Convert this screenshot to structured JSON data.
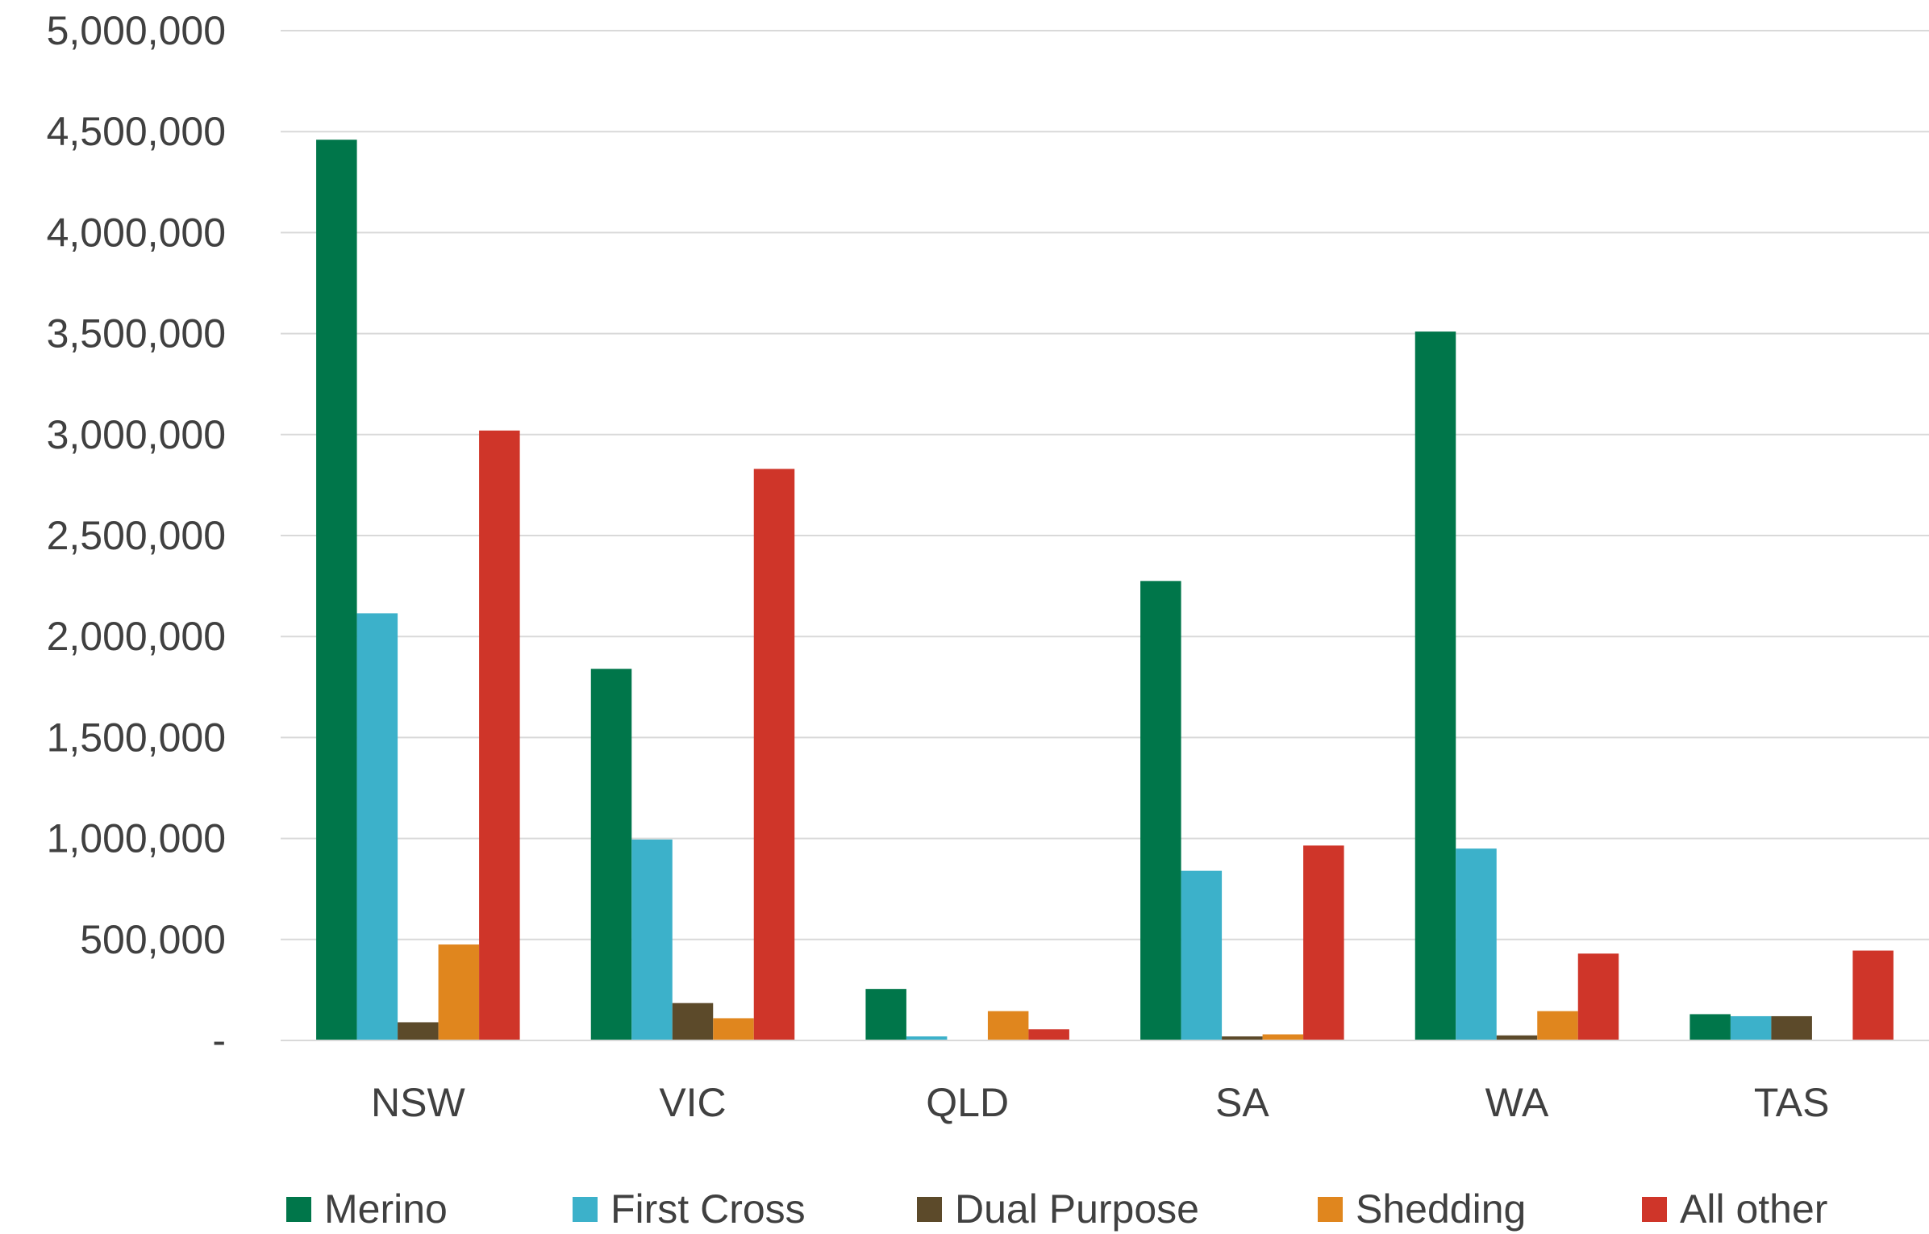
{
  "chart_data": {
    "type": "bar",
    "title": "",
    "xlabel": "",
    "ylabel": "",
    "categories": [
      "NSW",
      "VIC",
      "QLD",
      "SA",
      "WA",
      "TAS"
    ],
    "series": [
      {
        "name": "Merino",
        "color": "#00764a",
        "values": [
          4460000,
          1840000,
          255000,
          2275000,
          3510000,
          130000
        ]
      },
      {
        "name": "First Cross",
        "color": "#3cb1ca",
        "values": [
          2115000,
          995000,
          20000,
          840000,
          950000,
          120000
        ]
      },
      {
        "name": "Dual Purpose",
        "color": "#5c4a2a",
        "values": [
          90000,
          185000,
          0,
          20000,
          25000,
          120000
        ]
      },
      {
        "name": "Shedding",
        "color": "#e0861e",
        "values": [
          475000,
          110000,
          145000,
          30000,
          145000,
          0
        ]
      },
      {
        "name": "All other",
        "color": "#cf3529",
        "values": [
          3020000,
          2830000,
          55000,
          965000,
          430000,
          445000
        ]
      }
    ],
    "ylim": [
      0,
      5000000
    ],
    "yticks": [
      0,
      500000,
      1000000,
      1500000,
      2000000,
      2500000,
      3000000,
      3500000,
      4000000,
      4500000,
      5000000
    ],
    "ytick_labels": [
      "-",
      "500,000",
      "1,000,000",
      "1,500,000",
      "2,000,000",
      "2,500,000",
      "3,000,000",
      "3,500,000",
      "4,000,000",
      "4,500,000",
      "5,000,000"
    ],
    "grid": true,
    "legend": "bottom"
  }
}
